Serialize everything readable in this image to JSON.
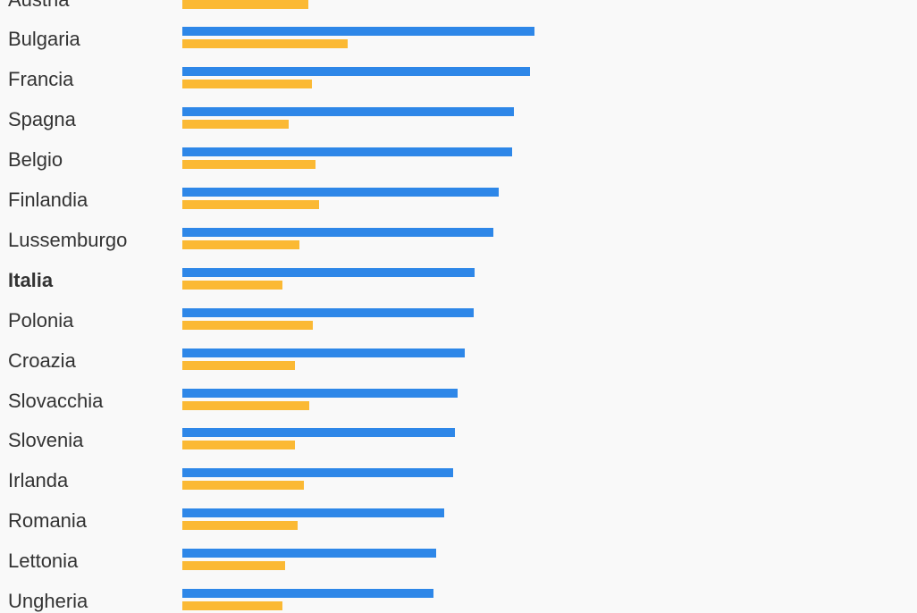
{
  "chart_data": {
    "type": "bar",
    "orientation": "horizontal",
    "categories": [
      "Austria",
      "Bulgaria",
      "Francia",
      "Spagna",
      "Belgio",
      "Finlandia",
      "Lussemburgo",
      "Italia",
      "Polonia",
      "Croazia",
      "Slovacchia",
      "Slovenia",
      "Irlanda",
      "Romania",
      "Lettonia",
      "Ungheria"
    ],
    "highlighted_category": "Italia",
    "series": [
      {
        "color": "#2e87e8",
        "values": [
          null,
          98.5,
          97.3,
          92.8,
          92.3,
          88.5,
          87.0,
          81.8,
          81.5,
          79.0,
          77.0,
          76.3,
          75.8,
          73.3,
          71.0,
          70.3
        ]
      },
      {
        "color": "#fbb934",
        "values": [
          35.3,
          46.3,
          36.3,
          29.8,
          37.3,
          38.3,
          32.8,
          28.0,
          36.5,
          31.5,
          35.5,
          31.5,
          34.0,
          32.3,
          28.8,
          28.0
        ]
      }
    ],
    "grid": false,
    "legend": "none"
  }
}
